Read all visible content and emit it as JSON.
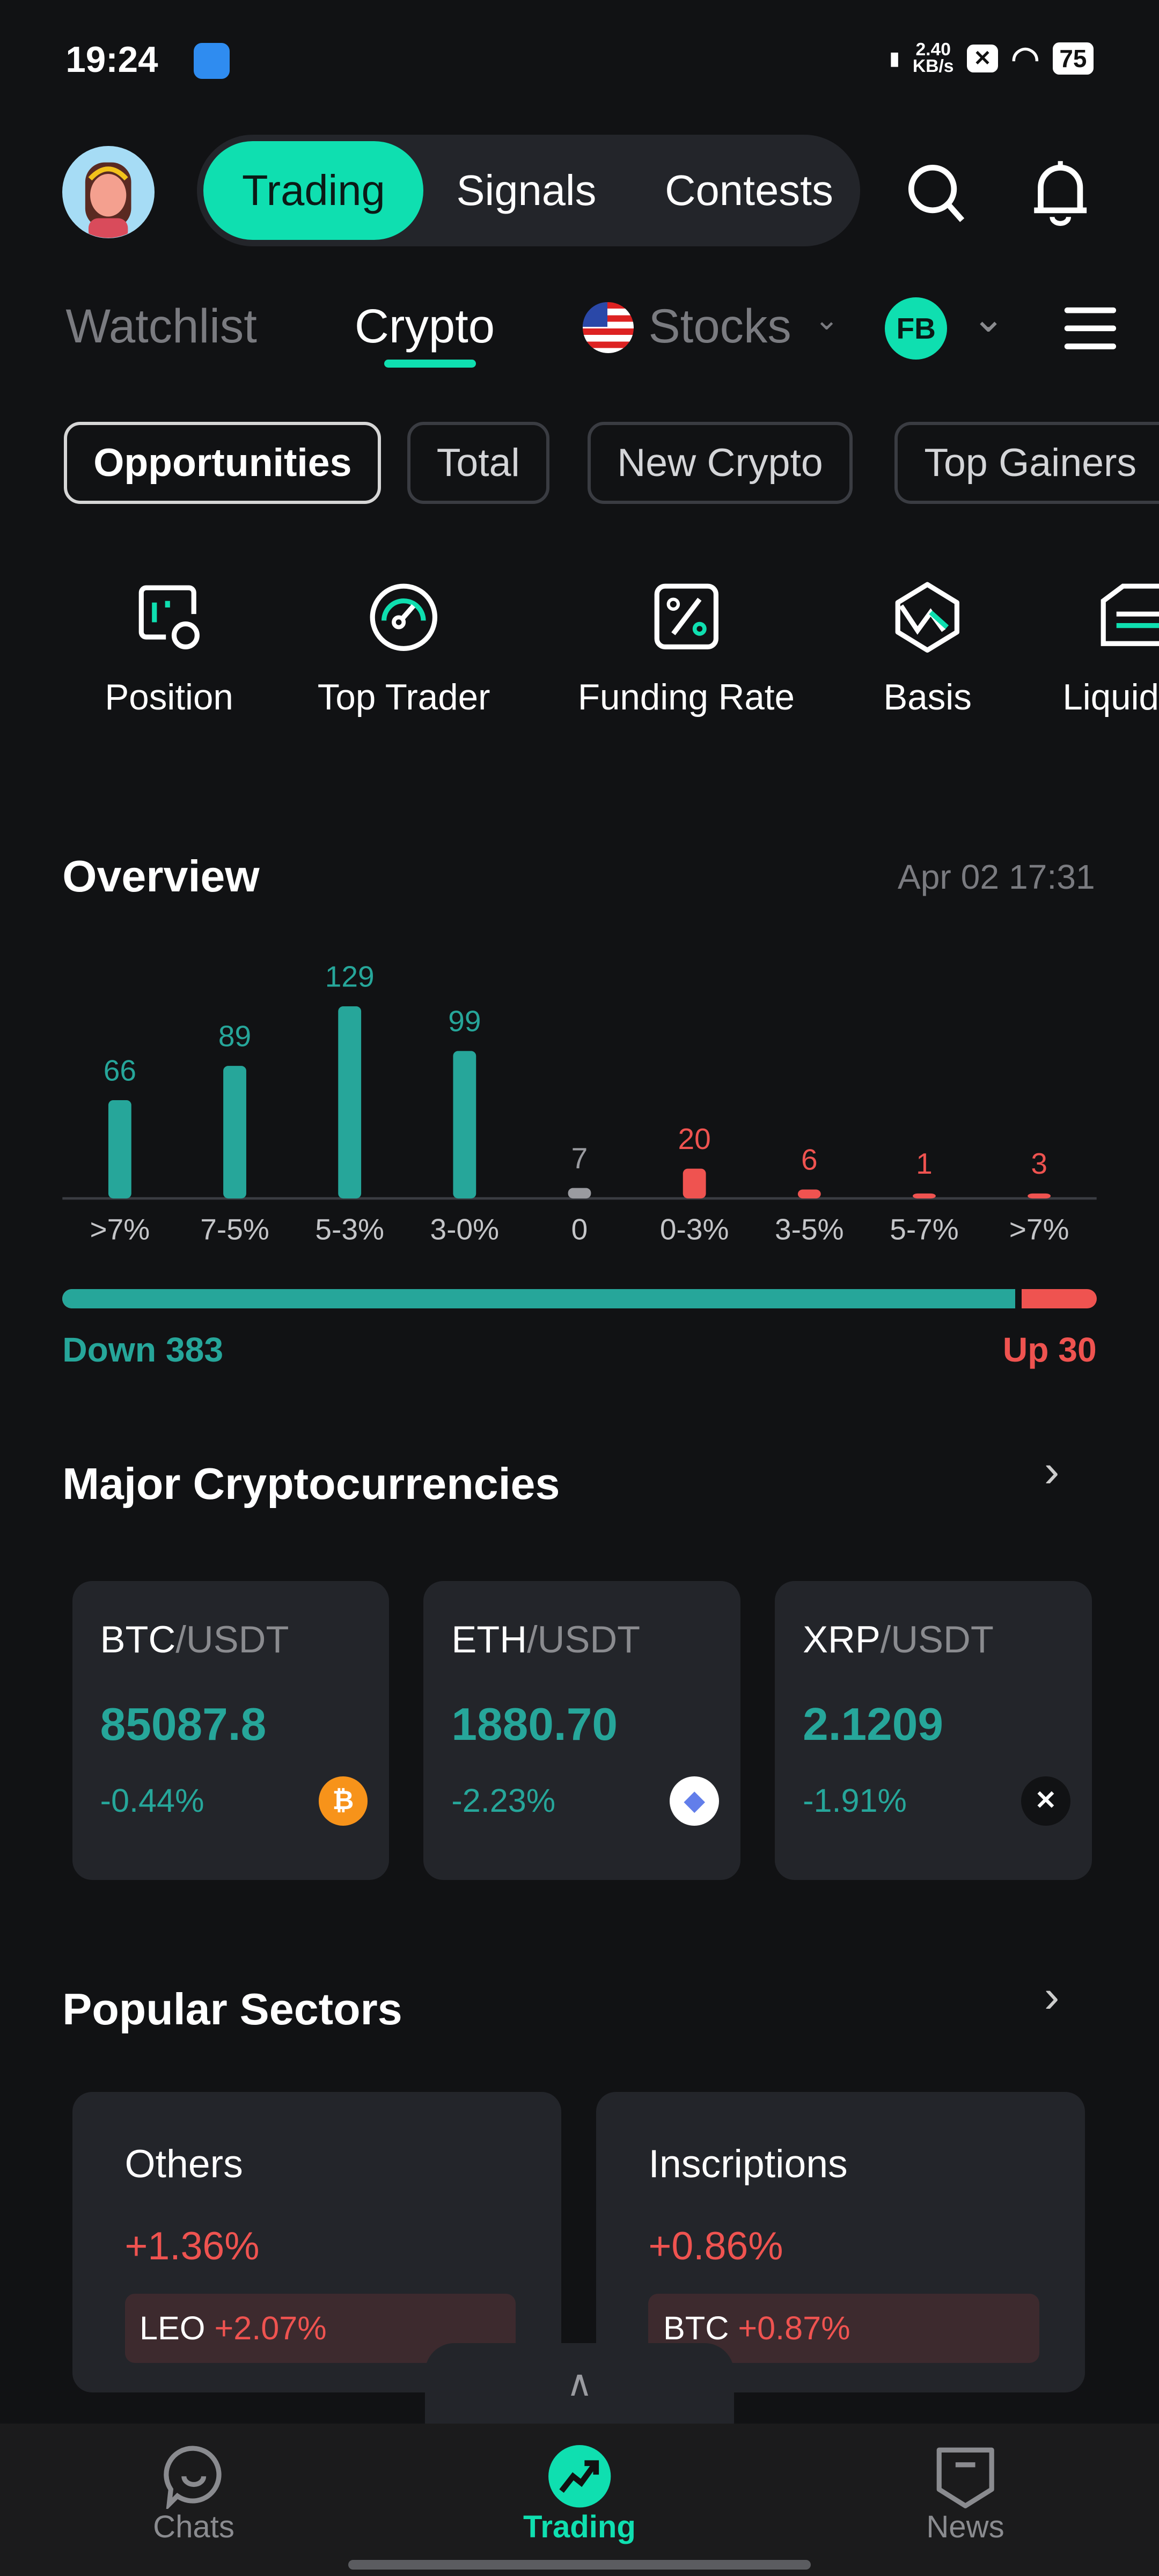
{
  "status_bar": {
    "time": "19:24",
    "net_speed": "2.40",
    "net_unit": "KB/s",
    "battery": "75"
  },
  "header": {
    "segments": [
      "Trading",
      "Signals",
      "Contests"
    ],
    "active_segment": "Trading"
  },
  "tabs": {
    "watchlist": "Watchlist",
    "crypto": "Crypto",
    "stocks": "Stocks",
    "badge": "FB",
    "active": "Crypto"
  },
  "chips": [
    "Opportunities",
    "Total",
    "New Crypto",
    "Top Gainers"
  ],
  "tools": [
    {
      "label": "Position",
      "icon": "position-icon"
    },
    {
      "label": "Top Trader",
      "icon": "gauge-icon"
    },
    {
      "label": "Funding Rate",
      "icon": "percent-icon"
    },
    {
      "label": "Basis",
      "icon": "basis-icon"
    },
    {
      "label": "Liquid",
      "icon": "liquidation-icon"
    }
  ],
  "overview": {
    "title": "Overview",
    "timestamp": "Apr 02 17:31",
    "down_label": "Down 383",
    "up_label": "Up 30",
    "down": 383,
    "up": 30
  },
  "chart_data": {
    "type": "bar",
    "categories": [
      ">7%",
      "7-5%",
      "5-3%",
      "3-0%",
      "0",
      "0-3%",
      "3-5%",
      "5-7%",
      ">7%"
    ],
    "values": [
      66,
      89,
      129,
      99,
      7,
      20,
      6,
      1,
      3
    ],
    "colors": [
      "#26a69a",
      "#26a69a",
      "#26a69a",
      "#26a69a",
      "#9a9ba0",
      "#ef5350",
      "#ef5350",
      "#ef5350",
      "#ef5350"
    ]
  },
  "major": {
    "title": "Major Cryptocurrencies",
    "cards": [
      {
        "base": "BTC",
        "quote": "/USDT",
        "price": "85087.8",
        "change": "-0.44%",
        "icon": "bitcoin-icon",
        "icon_bg": "#f7931a",
        "glyph": "₿"
      },
      {
        "base": "ETH",
        "quote": "/USDT",
        "price": "1880.70",
        "change": "-2.23%",
        "icon": "ethereum-icon",
        "icon_bg": "#ffffff",
        "glyph": "◆"
      },
      {
        "base": "XRP",
        "quote": "/USDT",
        "price": "2.1209",
        "change": "-1.91%",
        "icon": "xrp-icon",
        "icon_bg": "#111214",
        "glyph": "✕"
      }
    ]
  },
  "sectors": {
    "title": "Popular Sectors",
    "cards": [
      {
        "name": "Others",
        "change": "+1.36%",
        "top": "LEO",
        "top_change": "+2.07%"
      },
      {
        "name": "Inscriptions",
        "change": "+0.86%",
        "top": "BTC",
        "top_change": "+0.87%"
      }
    ]
  },
  "bottom_nav": [
    {
      "label": "Chats"
    },
    {
      "label": "Trading"
    },
    {
      "label": "News"
    }
  ],
  "colors": {
    "accent": "#0fdfb0",
    "down": "#26a69a",
    "up": "#ef5350",
    "card": "#23252a",
    "bg": "#111214"
  }
}
